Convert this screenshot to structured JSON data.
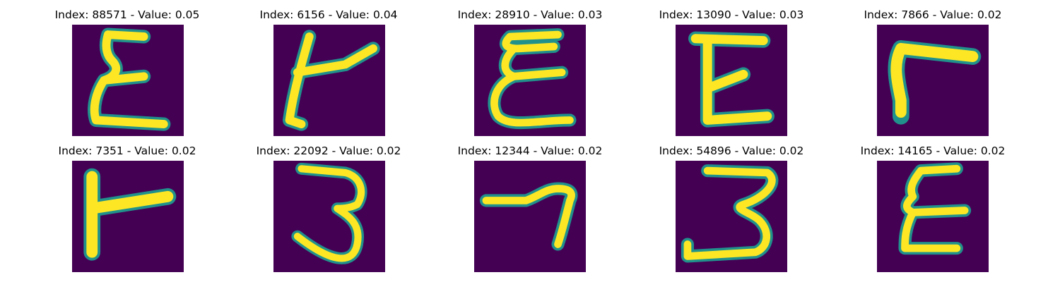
{
  "figure": {
    "panels": [
      {
        "index": "88571",
        "value": "0.05",
        "title": "Index: 88571 - Value: 0.05",
        "glyph": "E-left-curved"
      },
      {
        "index": "6156",
        "value": "0.04",
        "title": "Index: 6156 - Value: 0.04",
        "glyph": "t-arm"
      },
      {
        "index": "28910",
        "value": "0.03",
        "title": "Index: 28910 - Value: 0.03",
        "glyph": "E-wavy"
      },
      {
        "index": "13090",
        "value": "0.03",
        "title": "Index: 13090 - Value: 0.03",
        "glyph": "E-straight"
      },
      {
        "index": "7866",
        "value": "0.02",
        "title": "Index: 7866 - Value: 0.02",
        "glyph": "F-corner"
      },
      {
        "index": "7351",
        "value": "0.02",
        "title": "Index: 7351 - Value: 0.02",
        "glyph": "t-stub"
      },
      {
        "index": "22092",
        "value": "0.02",
        "title": "Index: 22092 - Value: 0.02",
        "glyph": "three-narrow"
      },
      {
        "index": "12344",
        "value": "0.02",
        "title": "Index: 12344 - Value: 0.02",
        "glyph": "seven"
      },
      {
        "index": "54896",
        "value": "0.02",
        "title": "Index: 54896 - Value: 0.02",
        "glyph": "three-wide"
      },
      {
        "index": "14165",
        "value": "0.02",
        "title": "Index: 14165 - Value: 0.02",
        "glyph": "E-small"
      }
    ],
    "colormap": {
      "background": "#440154",
      "edge": "#21918c",
      "mid": "#5ec962",
      "stroke": "#fde725"
    }
  }
}
